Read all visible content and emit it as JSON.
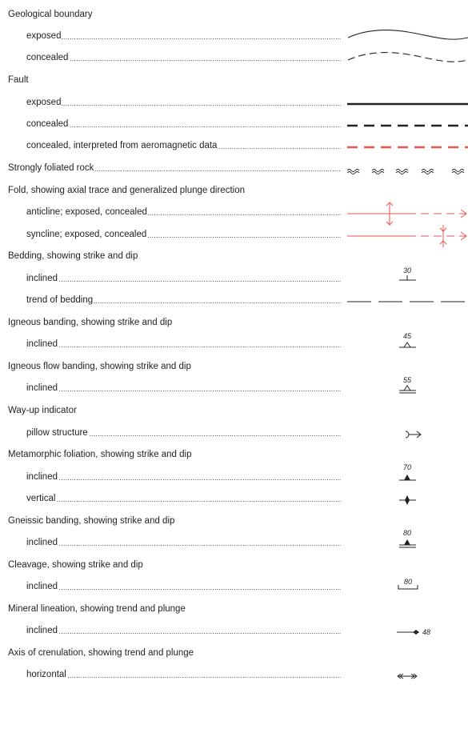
{
  "headings": {
    "geological_boundary": "Geological boundary",
    "fault": "Fault",
    "fold": "Fold, showing axial trace and generalized plunge direction",
    "bedding": "Bedding, showing strike and dip",
    "igneous_banding": "Igneous banding, showing strike and dip",
    "igneous_flow_banding": "Igneous flow banding, showing strike and dip",
    "way_up": "Way-up indicator",
    "metamorphic_foliation": "Metamorphic foliation, showing strike and dip",
    "gneissic_banding": "Gneissic banding, showing strike and dip",
    "cleavage": "Cleavage, showing strike and dip",
    "mineral_lineation": "Mineral lineation, showing trend and plunge",
    "crenulation_axis": "Axis of crenulation, showing trend and plunge"
  },
  "items": {
    "boundary_exposed": "exposed",
    "boundary_concealed": "concealed",
    "fault_exposed": "exposed",
    "fault_concealed": "concealed",
    "fault_aeromag": "concealed, interpreted from aeromagnetic data",
    "foliated": "Strongly foliated rock",
    "anticline": "anticline; exposed, concealed",
    "syncline": "syncline; exposed, concealed",
    "bedding_inclined": "inclined",
    "bedding_trend": "trend of bedding",
    "igneous_inclined": "inclined",
    "flow_inclined": "inclined",
    "pillow": "pillow structure",
    "foliation_inclined": "inclined",
    "foliation_vertical": "vertical",
    "gneissic_inclined": "inclined",
    "cleavage_inclined": "inclined",
    "lineation_inclined": "inclined",
    "crenulation_horizontal": "horizontal"
  },
  "symbol_values": {
    "bedding_dip": "30",
    "igneous_dip": "45",
    "flow_dip": "55",
    "foliation_dip": "70",
    "gneissic_dip": "80",
    "cleavage_dip": "80",
    "lineation_plunge": "48"
  },
  "colors": {
    "line_black": "#222222",
    "line_red": "#e8574f"
  }
}
